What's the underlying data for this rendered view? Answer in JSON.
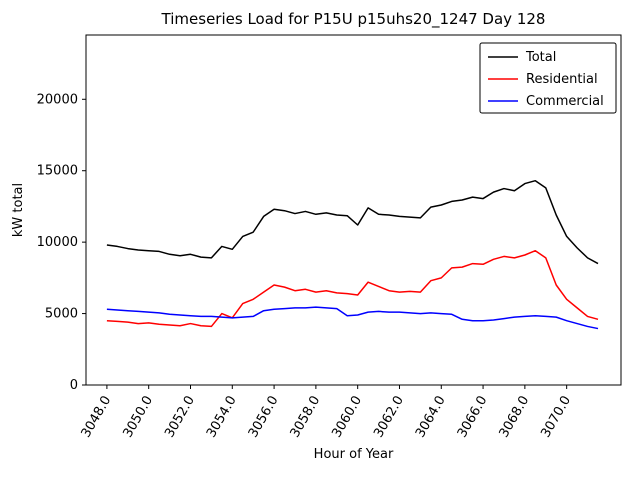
{
  "chart_data": {
    "type": "line",
    "title": "Timeseries Load for P15U p15uhs20_1247  Day 128",
    "xlabel": "Hour of Year",
    "ylabel": "kW total",
    "xlim": [
      3047.0,
      3072.6
    ],
    "ylim": [
      0,
      24500
    ],
    "xticks": [
      3048.0,
      3050.0,
      3052.0,
      3054.0,
      3056.0,
      3058.0,
      3060.0,
      3062.0,
      3064.0,
      3066.0,
      3068.0,
      3070.0
    ],
    "xtick_labels": [
      "3048.0",
      "3050.0",
      "3052.0",
      "3054.0",
      "3056.0",
      "3058.0",
      "3060.0",
      "3062.0",
      "3064.0",
      "3066.0",
      "3068.0",
      "3070.0"
    ],
    "yticks": [
      0,
      5000,
      10000,
      15000,
      20000
    ],
    "ytick_labels": [
      "0",
      "5000",
      "10000",
      "15000",
      "20000"
    ],
    "grid": false,
    "legend_position": "upper-right",
    "x": [
      3048.0,
      3048.5,
      3049.0,
      3049.5,
      3050.0,
      3050.5,
      3051.0,
      3051.5,
      3052.0,
      3052.5,
      3053.0,
      3053.5,
      3054.0,
      3054.5,
      3055.0,
      3055.5,
      3056.0,
      3056.5,
      3057.0,
      3057.5,
      3058.0,
      3058.5,
      3059.0,
      3059.5,
      3060.0,
      3060.5,
      3061.0,
      3061.5,
      3062.0,
      3062.5,
      3063.0,
      3063.5,
      3064.0,
      3064.5,
      3065.0,
      3065.5,
      3066.0,
      3066.5,
      3067.0,
      3067.5,
      3068.0,
      3068.5,
      3069.0,
      3069.5,
      3070.0,
      3070.5,
      3071.0,
      3071.5
    ],
    "series": [
      {
        "name": "Total",
        "color": "#000000",
        "values": [
          9800,
          9700,
          9550,
          9450,
          9400,
          9350,
          9150,
          9050,
          9150,
          8950,
          8900,
          9700,
          9500,
          10400,
          10700,
          11800,
          12300,
          12200,
          12000,
          12150,
          11950,
          12050,
          11900,
          11850,
          11200,
          12400,
          11950,
          11900,
          11800,
          11750,
          11700,
          12450,
          12600,
          12850,
          12950,
          13150,
          13050,
          13500,
          13750,
          13600,
          14100,
          14300,
          13800,
          11900,
          10400,
          9600,
          8900,
          8500
        ]
      },
      {
        "name": "Residential",
        "color": "#ff0000",
        "values": [
          4500,
          4450,
          4400,
          4300,
          4350,
          4250,
          4200,
          4150,
          4300,
          4150,
          4100,
          5000,
          4700,
          5700,
          6000,
          6500,
          7000,
          6850,
          6600,
          6700,
          6500,
          6600,
          6450,
          6400,
          6300,
          7200,
          6900,
          6600,
          6500,
          6550,
          6500,
          7300,
          7500,
          8200,
          8250,
          8500,
          8450,
          8800,
          9000,
          8900,
          9100,
          9400,
          8900,
          7000,
          6000,
          5400,
          4800,
          4600
        ]
      },
      {
        "name": "Commercial",
        "color": "#0000ff",
        "values": [
          5300,
          5250,
          5200,
          5150,
          5100,
          5050,
          4950,
          4900,
          4850,
          4800,
          4800,
          4750,
          4700,
          4750,
          4800,
          5200,
          5300,
          5350,
          5400,
          5400,
          5450,
          5400,
          5350,
          4850,
          4900,
          5100,
          5150,
          5100,
          5100,
          5050,
          5000,
          5050,
          5000,
          4950,
          4600,
          4500,
          4500,
          4550,
          4650,
          4750,
          4800,
          4850,
          4800,
          4750,
          4500,
          4300,
          4100,
          3950
        ]
      }
    ]
  }
}
